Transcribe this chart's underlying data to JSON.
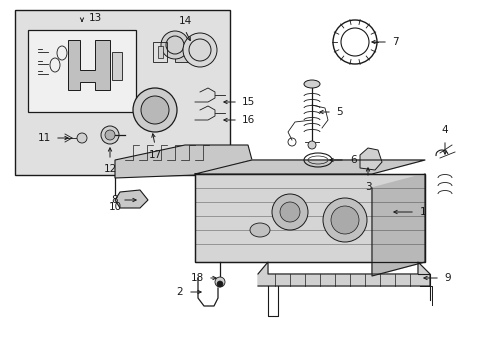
{
  "bg_color": "#ffffff",
  "lc": "#1a1a1a",
  "gray_bg": "#d8d8d8",
  "figsize": [
    4.89,
    3.6
  ],
  "dpi": 100,
  "xlim": [
    0,
    489
  ],
  "ylim": [
    0,
    360
  ]
}
